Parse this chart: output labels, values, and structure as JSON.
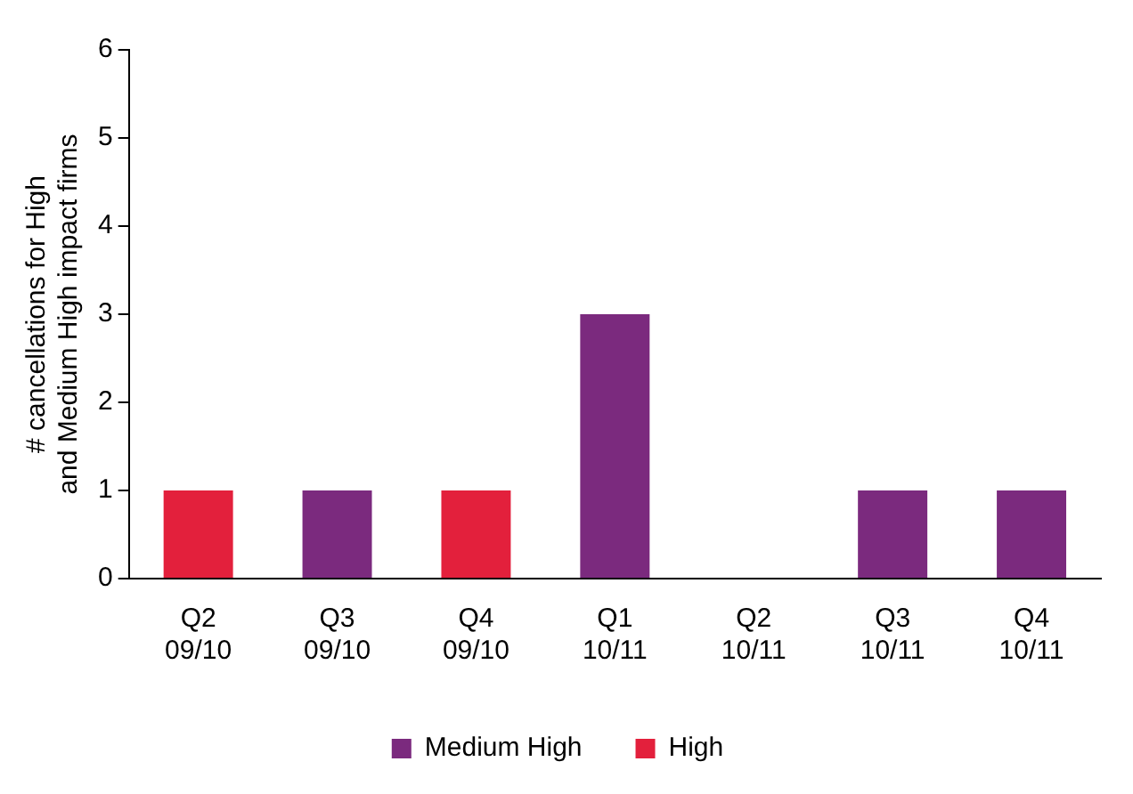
{
  "chart_data": {
    "type": "bar",
    "ylabel": "# cancellations for High and Medium High impact firms",
    "categories": [
      "Q2 09/10",
      "Q3 09/10",
      "Q4 09/10",
      "Q1 10/11",
      "Q2 10/11",
      "Q3 10/11",
      "Q4 10/11"
    ],
    "series": [
      {
        "name": "Medium High",
        "color": "#7b2a7e",
        "values": [
          0,
          1,
          0,
          3,
          0,
          1,
          1
        ]
      },
      {
        "name": "High",
        "color": "#e3203c",
        "values": [
          1,
          0,
          1,
          0,
          0,
          0,
          0
        ]
      }
    ],
    "stacked": true,
    "ylim": [
      0,
      6
    ],
    "yticks": [
      0,
      1,
      2,
      3,
      4,
      5,
      6
    ],
    "grid": false,
    "legend": "bottom"
  }
}
